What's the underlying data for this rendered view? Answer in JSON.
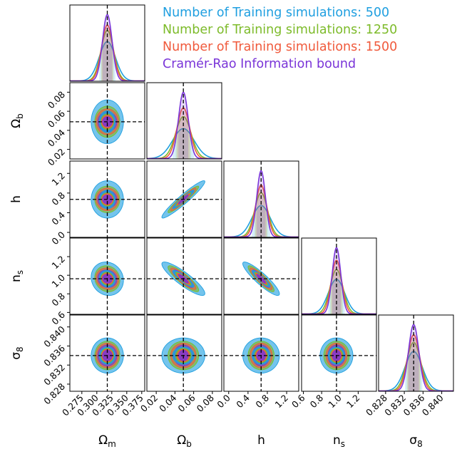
{
  "chart_data": {
    "type": "corner",
    "parameters": [
      {
        "symbol": "Ω",
        "sub": "m",
        "fiducial": 0.3175,
        "range": [
          0.255,
          0.38
        ],
        "ticks": [
          0.275,
          0.3,
          0.325,
          0.35,
          0.375
        ],
        "tick_labels": [
          "0.275",
          "0.300",
          "0.325",
          "0.350",
          "0.375"
        ]
      },
      {
        "symbol": "Ω",
        "sub": "b",
        "fiducial": 0.049,
        "range": [
          0.01,
          0.09
        ],
        "ticks": [
          0.02,
          0.04,
          0.06,
          0.08
        ],
        "tick_labels": [
          "0.02",
          "0.04",
          "0.06",
          "0.08"
        ]
      },
      {
        "symbol": "h",
        "sub": "",
        "fiducial": 0.6711,
        "range": [
          -0.1,
          1.45
        ],
        "ticks": [
          0.0,
          0.4,
          0.8,
          1.2
        ],
        "tick_labels": [
          "0.0",
          "0.4",
          "0.8",
          "1.2"
        ]
      },
      {
        "symbol": "n",
        "sub": "s",
        "fiducial": 0.9624,
        "range": [
          0.58,
          1.4
        ],
        "ticks": [
          0.6,
          0.8,
          1.0,
          1.2
        ],
        "tick_labels": [
          "0.6",
          "0.8",
          "1.0",
          "1.2"
        ]
      },
      {
        "symbol": "σ",
        "sub": "8",
        "fiducial": 0.834,
        "range": [
          0.8265,
          0.8425
        ],
        "ticks": [
          0.828,
          0.832,
          0.836,
          0.84
        ],
        "tick_labels": [
          "0.828",
          "0.832",
          "0.836",
          "0.840"
        ]
      }
    ],
    "series": [
      {
        "name": "Number of Training simulations: 500",
        "color": "#1f9fe0",
        "sigma": [
          0.0135,
          0.0115,
          0.19,
          0.09,
          0.00185
        ]
      },
      {
        "name": "Number of Training simulations: 1250",
        "color": "#7dbb2a",
        "sigma": [
          0.0105,
          0.0082,
          0.135,
          0.07,
          0.0015
        ]
      },
      {
        "name": "Number of Training simulations: 1500",
        "color": "#f05a3c",
        "sigma": [
          0.0095,
          0.0068,
          0.115,
          0.058,
          0.0013
        ]
      },
      {
        "name": "Cramér-Rao Information bound",
        "color": "#7a35d8",
        "sigma": [
          0.008,
          0.0052,
          0.09,
          0.047,
          0.0011
        ]
      }
    ],
    "correlations": [
      {
        "pair": [
          1,
          0
        ],
        "rho": 0.0
      },
      {
        "pair": [
          2,
          0
        ],
        "rho": 0.0
      },
      {
        "pair": [
          2,
          1
        ],
        "rho": 0.95
      },
      {
        "pair": [
          3,
          0
        ],
        "rho": -0.1
      },
      {
        "pair": [
          3,
          1
        ],
        "rho": -0.88
      },
      {
        "pair": [
          3,
          2
        ],
        "rho": -0.9
      },
      {
        "pair": [
          4,
          0
        ],
        "rho": 0.0
      },
      {
        "pair": [
          4,
          1
        ],
        "rho": 0.0
      },
      {
        "pair": [
          4,
          2
        ],
        "rho": 0.0
      },
      {
        "pair": [
          4,
          3
        ],
        "rho": 0.0
      }
    ],
    "contour_levels_sigma": [
      2,
      1
    ],
    "fiducial_lines": "dashed",
    "legend_position": "top-right"
  }
}
